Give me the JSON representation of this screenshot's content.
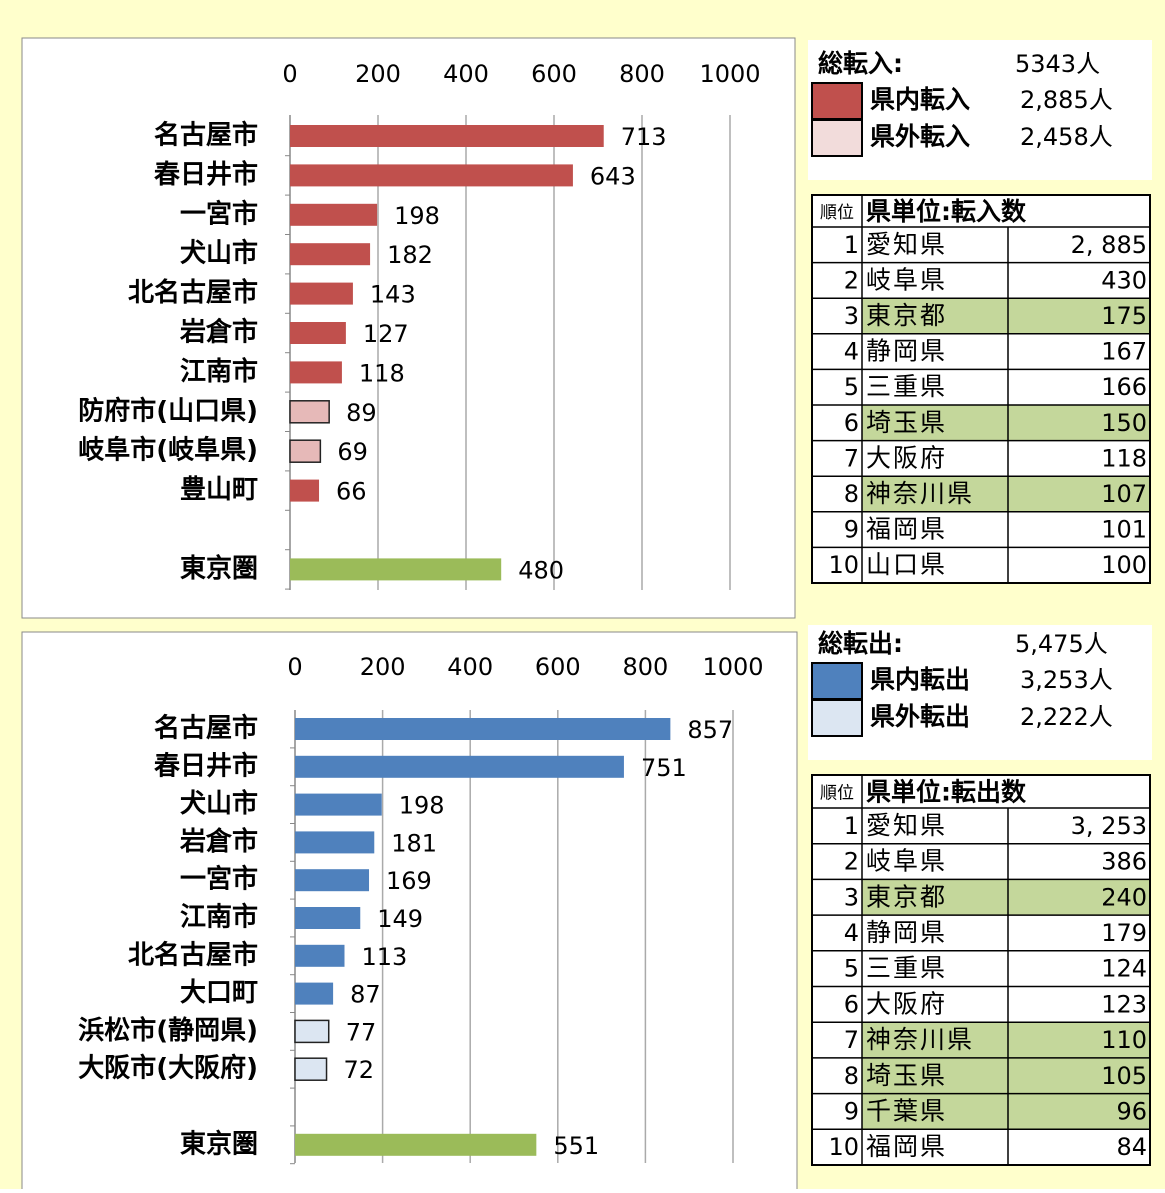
{
  "chart_data": [
    {
      "type": "bar",
      "orientation": "horizontal",
      "categories": [
        "名古屋市",
        "春日井市",
        "一宮市",
        "犬山市",
        "北名古屋市",
        "岩倉市",
        "江南市",
        "防府市(山口県)",
        "岐阜市(岐阜県)",
        "豊山町",
        null,
        "東京圏"
      ],
      "values": [
        713,
        643,
        198,
        182,
        143,
        127,
        118,
        89,
        69,
        66,
        null,
        480
      ],
      "colors": [
        "#c0504d",
        "#c0504d",
        "#c0504d",
        "#c0504d",
        "#c0504d",
        "#c0504d",
        "#c0504d",
        "#e6b9b8",
        "#e6b9b8",
        "#c0504d",
        null,
        "#9bbb59"
      ],
      "xlim": [
        0,
        1000
      ],
      "xticks": [
        0,
        200,
        400,
        600,
        800,
        1000
      ],
      "grid": true
    },
    {
      "type": "bar",
      "orientation": "horizontal",
      "categories": [
        "名古屋市",
        "春日井市",
        "犬山市",
        "岩倉市",
        "一宮市",
        "江南市",
        "北名古屋市",
        "大口町",
        "浜松市(静岡県)",
        "大阪市(大阪府)",
        null,
        "東京圏"
      ],
      "values": [
        857,
        751,
        198,
        181,
        169,
        149,
        113,
        87,
        77,
        72,
        null,
        551
      ],
      "colors": [
        "#4f81bd",
        "#4f81bd",
        "#4f81bd",
        "#4f81bd",
        "#4f81bd",
        "#4f81bd",
        "#4f81bd",
        "#4f81bd",
        "#dce6f2",
        "#dce6f2",
        null,
        "#9bbb59"
      ],
      "xlim": [
        0,
        1000
      ],
      "xticks": [
        0,
        200,
        400,
        600,
        800,
        1000
      ],
      "grid": true
    }
  ],
  "summaries": [
    {
      "total_label": "総転入:",
      "total": "5343人",
      "entries": [
        {
          "name": "県内転入",
          "value": "2,885人",
          "color": "#c0504d"
        },
        {
          "name": "県外転入",
          "value": "2,458人",
          "color": "#f2dcdb"
        }
      ]
    },
    {
      "total_label": "総転出:",
      "total": "5,475人",
      "entries": [
        {
          "name": "県内転出",
          "value": "3,253人",
          "color": "#4f81bd"
        },
        {
          "name": "県外転出",
          "value": "2,222人",
          "color": "#dce6f2"
        }
      ]
    }
  ],
  "tables": [
    {
      "rank_header": "順位",
      "header": "県単位:転入数",
      "rows": [
        {
          "rank": 1,
          "name": "愛知県",
          "count": "2, 885",
          "highlight": false
        },
        {
          "rank": 2,
          "name": "岐阜県",
          "count": "430",
          "highlight": false
        },
        {
          "rank": 3,
          "name": "東京都",
          "count": "175",
          "highlight": true
        },
        {
          "rank": 4,
          "name": "静岡県",
          "count": "167",
          "highlight": false
        },
        {
          "rank": 5,
          "name": "三重県",
          "count": "166",
          "highlight": false
        },
        {
          "rank": 6,
          "name": "埼玉県",
          "count": "150",
          "highlight": true
        },
        {
          "rank": 7,
          "name": "大阪府",
          "count": "118",
          "highlight": false
        },
        {
          "rank": 8,
          "name": "神奈川県",
          "count": "107",
          "highlight": true
        },
        {
          "rank": 9,
          "name": "福岡県",
          "count": "101",
          "highlight": false
        },
        {
          "rank": 10,
          "name": "山口県",
          "count": "100",
          "highlight": false
        }
      ]
    },
    {
      "rank_header": "順位",
      "header": "県単位:転出数",
      "rows": [
        {
          "rank": 1,
          "name": "愛知県",
          "count": "3, 253",
          "highlight": false
        },
        {
          "rank": 2,
          "name": "岐阜県",
          "count": "386",
          "highlight": false
        },
        {
          "rank": 3,
          "name": "東京都",
          "count": "240",
          "highlight": true
        },
        {
          "rank": 4,
          "name": "静岡県",
          "count": "179",
          "highlight": false
        },
        {
          "rank": 5,
          "name": "三重県",
          "count": "124",
          "highlight": false
        },
        {
          "rank": 6,
          "name": "大阪府",
          "count": "123",
          "highlight": false
        },
        {
          "rank": 7,
          "name": "神奈川県",
          "count": "110",
          "highlight": true
        },
        {
          "rank": 8,
          "name": "埼玉県",
          "count": "105",
          "highlight": true
        },
        {
          "rank": 9,
          "name": "千葉県",
          "count": "96",
          "highlight": true
        },
        {
          "rank": 10,
          "name": "福岡県",
          "count": "84",
          "highlight": false
        }
      ]
    }
  ]
}
